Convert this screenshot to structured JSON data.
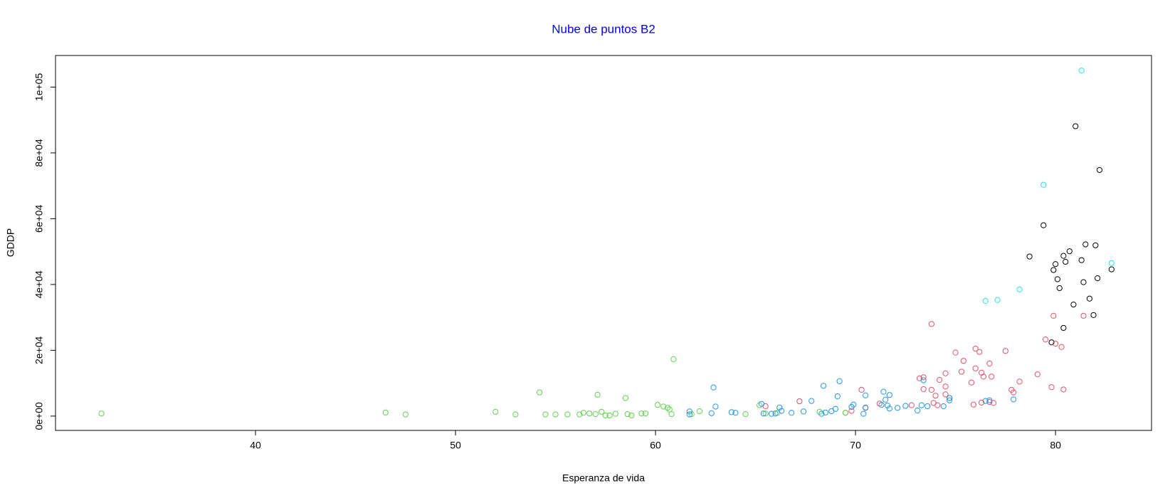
{
  "chart_data": {
    "type": "scatter",
    "title": "Nube de puntos B2",
    "x_label": "Esperanza de vida",
    "y_label": "GDDP",
    "xlim": [
      30,
      84.8
    ],
    "xticks": [
      40,
      50,
      60,
      70,
      80
    ],
    "ylim": [
      -4350,
      109600
    ],
    "yticks": [
      {
        "value": 0,
        "label": "0e+00"
      },
      {
        "value": 20000,
        "label": "2e+04"
      },
      {
        "value": 40000,
        "label": "4e+04"
      },
      {
        "value": 60000,
        "label": "6e+04"
      },
      {
        "value": 80000,
        "label": "8e+04"
      },
      {
        "value": 100000,
        "label": "1e+05"
      }
    ],
    "series": [
      {
        "color": "#000000",
        "x": [
          81.0,
          82.2,
          79.4,
          78.7,
          81.5,
          82.0,
          80.7,
          80.4,
          80.0,
          80.5,
          81.3,
          79.9,
          82.8,
          80.1,
          81.4,
          82.1,
          80.2,
          81.7,
          80.9,
          81.9,
          80.4,
          79.8
        ],
        "values": [
          88100,
          74800,
          58000,
          48500,
          52200,
          51900,
          50100,
          48700,
          46200,
          46900,
          47400,
          44400,
          44600,
          41600,
          40700,
          41900,
          38900,
          35700,
          33900,
          30700,
          26800,
          22400
        ]
      },
      {
        "color": "#28E2E5",
        "x": [
          81.3,
          79.4,
          82.8,
          78.2,
          76.5,
          77.1
        ],
        "values": [
          105000,
          70300,
          46500,
          38500,
          35000,
          35300
        ]
      },
      {
        "color": "#DF536B",
        "x": [
          73.8,
          79.9,
          81.4,
          79.5,
          80.0,
          80.3,
          76.0,
          76.2,
          75.0,
          77.5,
          75.4,
          76.7,
          75.3,
          76.0,
          76.3,
          79.1,
          76.4,
          76.8,
          74.5,
          73.2,
          73.4,
          74.2,
          75.8,
          78.2,
          74.5,
          79.8,
          80.4,
          70.3,
          73.4,
          73.8,
          77.8,
          77.9,
          74.5,
          74.0,
          74.7,
          71.2,
          72.8,
          73.9,
          74.1,
          75.9,
          76.3,
          76.7,
          76.9,
          67.2,
          69.8,
          70.5,
          65.5,
          69.5
        ],
        "values": [
          28000,
          30500,
          30500,
          23300,
          22000,
          21000,
          20500,
          19500,
          19300,
          19800,
          16800,
          16000,
          13500,
          14500,
          13200,
          12700,
          12000,
          12000,
          13000,
          11500,
          11800,
          11000,
          10200,
          10500,
          9000,
          8800,
          8100,
          8000,
          8200,
          8000,
          8000,
          7200,
          6600,
          6200,
          5500,
          3800,
          3300,
          4000,
          3300,
          3500,
          4100,
          4300,
          4000,
          4500,
          1600,
          2500,
          3000,
          1000
        ]
      },
      {
        "color": "#61D04F",
        "x": [
          32.3,
          46.5,
          47.5,
          52.0,
          53.0,
          54.2,
          54.5,
          55.0,
          55.6,
          56.2,
          56.4,
          56.7,
          57.0,
          57.1,
          57.3,
          57.5,
          57.7,
          58.0,
          58.5,
          58.6,
          58.8,
          59.3,
          59.5,
          60.1,
          60.4,
          60.6,
          60.7,
          60.8,
          60.9,
          61.8,
          62.2,
          64.5,
          65.5,
          66.1,
          68.2,
          69.5,
          65.2
        ],
        "values": [
          800,
          1100,
          500,
          1300,
          500,
          7200,
          500,
          500,
          500,
          500,
          1000,
          800,
          600,
          6500,
          1300,
          200,
          200,
          700,
          5500,
          600,
          200,
          800,
          800,
          3400,
          2900,
          2500,
          2000,
          600,
          17300,
          600,
          1500,
          600,
          800,
          1000,
          1300,
          1000,
          3300
        ]
      },
      {
        "color": "#2297E6",
        "x": [
          61.7,
          61.7,
          62.8,
          62.9,
          63.0,
          63.8,
          64.0,
          65.3,
          65.4,
          66.2,
          66.3,
          66.0,
          66.8,
          67.4,
          67.8,
          68.4,
          68.3,
          68.5,
          68.8,
          69.0,
          69.1,
          69.2,
          69.8,
          69.9,
          70.4,
          70.5,
          70.5,
          71.3,
          71.4,
          71.5,
          71.6,
          71.7,
          71.7,
          72.1,
          72.5,
          73.1,
          73.3,
          73.4,
          73.6,
          74.4,
          74.7,
          74.7,
          76.5,
          76.7,
          77.9,
          65.8
        ],
        "values": [
          1400,
          500,
          900,
          8700,
          2900,
          1200,
          1000,
          3700,
          800,
          2600,
          1600,
          800,
          1000,
          1400,
          4600,
          9200,
          700,
          1100,
          1500,
          2200,
          6000,
          10600,
          2800,
          3500,
          700,
          6300,
          2600,
          3400,
          7400,
          5000,
          3200,
          6400,
          2300,
          2500,
          3100,
          1700,
          3300,
          10900,
          3000,
          3000,
          4800,
          5500,
          4600,
          4800,
          5100,
          700
        ]
      }
    ]
  }
}
